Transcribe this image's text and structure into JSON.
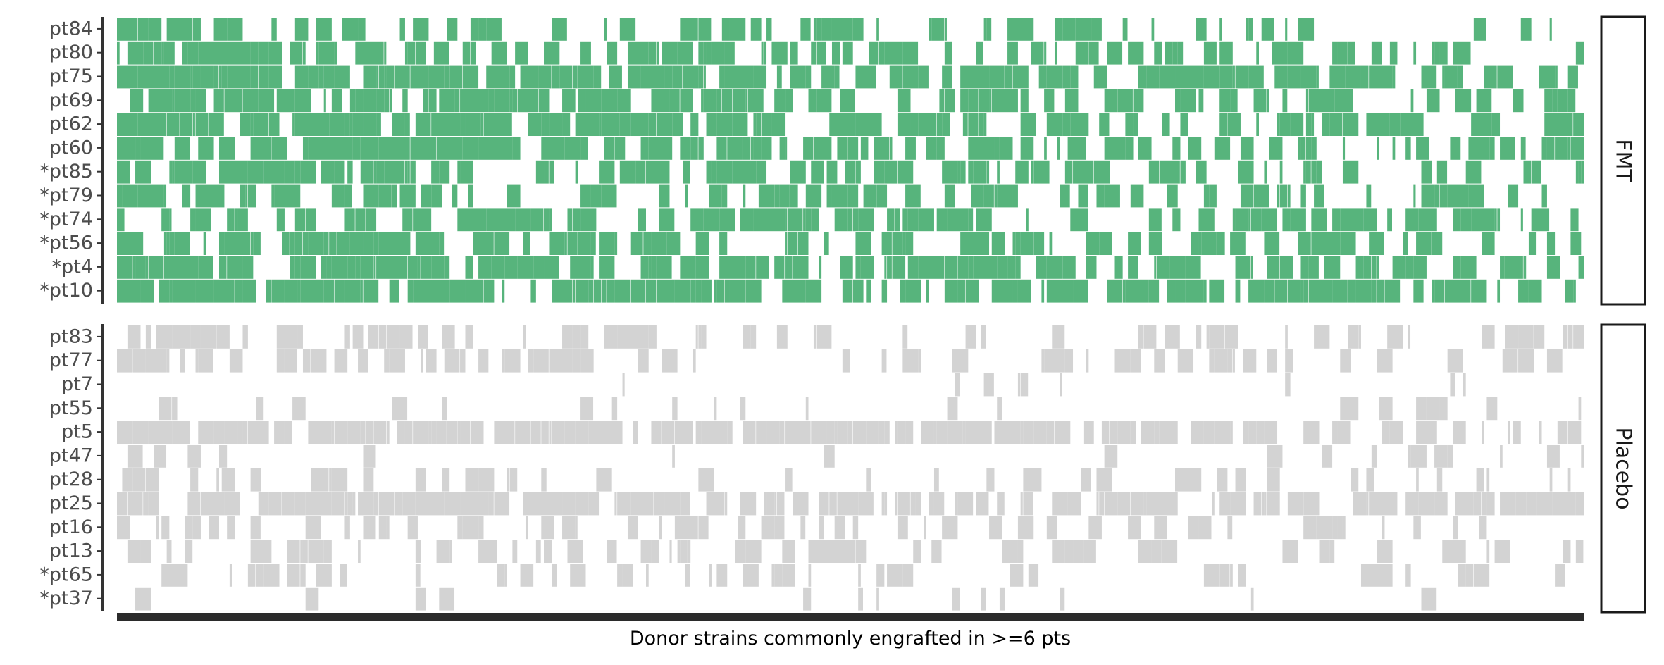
{
  "chart_data": {
    "type": "heatmap",
    "xlabel": "Donor strains commonly engrafted in >=6 pts",
    "panels": [
      {
        "name": "FMT",
        "color": "#57b47c",
        "patients": [
          "pt84",
          "pt80",
          "pt75",
          "pt69",
          "pt62",
          "pt60",
          "*pt85",
          "*pt79",
          "*pt74",
          "*pt56",
          "*pt4",
          "*pt10"
        ],
        "density": [
          0.45,
          0.55,
          0.75,
          0.65,
          0.7,
          0.65,
          0.55,
          0.5,
          0.55,
          0.55,
          0.65,
          0.75
        ]
      },
      {
        "name": "Placebo",
        "color": "#d3d3d3",
        "patients": [
          "pt83",
          "pt77",
          "pt7",
          "pt55",
          "pt5",
          "pt47",
          "pt28",
          "pt25",
          "pt16",
          "pt13",
          "*pt65",
          "*pt37"
        ],
        "density": [
          0.4,
          0.35,
          0.05,
          0.12,
          0.8,
          0.15,
          0.3,
          0.75,
          0.35,
          0.4,
          0.3,
          0.12
        ]
      }
    ],
    "n_strains": 560,
    "grid": false
  }
}
